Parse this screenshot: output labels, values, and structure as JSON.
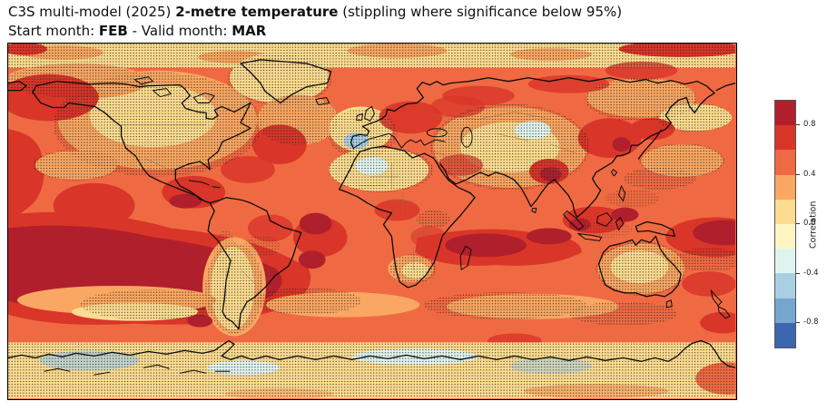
{
  "header": {
    "title_prefix": "C3S multi-model (2025) ",
    "title_emphasis": "2-metre temperature",
    "title_suffix": " (stippling where significance below 95%)",
    "start_label": "Start month: ",
    "start_month": "FEB",
    "valid_label": " - Valid month: ",
    "valid_month": "MAR"
  },
  "colorbar": {
    "label": "Correlation",
    "ticks": [
      "0.8",
      "0.4",
      "0.0",
      "-0.4",
      "-0.8"
    ],
    "segment_colors": [
      "#b01f2c",
      "#d93529",
      "#ef6a42",
      "#f9a762",
      "#fcdc8f",
      "#fdf5c2",
      "#e1f3ee",
      "#a9cfe4",
      "#74a6d0",
      "#3c66af"
    ]
  },
  "chart_data": {
    "type": "heatmap",
    "subtype": "filled-contour global correlation map with stippling",
    "title": "C3S multi-model (2025) 2-metre temperature (stippling where significance below 95%)",
    "subtitle": "Start month: FEB - Valid month: MAR",
    "variable": "2-metre temperature",
    "model": "C3S multi-model (2025)",
    "start_month": "FEB",
    "valid_month": "MAR",
    "projection": "equirectangular world map, lon -180..180, lat -90..90",
    "colorbar_label": "Correlation",
    "colorbar_ticks": [
      0.8,
      0.4,
      0.0,
      -0.4,
      -0.8
    ],
    "value_range": [
      -1.0,
      1.0
    ],
    "contour_step": 0.2,
    "stippling_meaning": "stippled where significance below 95%",
    "legend_position": "vertical colorbar at right",
    "palette": {
      "c10": "#b01f2c",
      "c08": "#d93529",
      "c06": "#ef6a42",
      "c04": "#f9a762",
      "c02": "#fcdc8f",
      "c00": "#fdf5c2",
      "n02": "#e1f3ee",
      "n04": "#a9cfe4",
      "n06": "#74a6d0",
      "n08": "#3c66af",
      "coast": "#0b0b0b",
      "border": "#8a7258",
      "stipple": "#1b1b1b"
    },
    "region_readings": [
      {
        "region": "Tropical central/eastern Pacific",
        "correlation": "0.8 to 1.0",
        "stippled": false
      },
      {
        "region": "Western Indian Ocean band",
        "correlation": "0.8 to 1.0",
        "stippled": false
      },
      {
        "region": "Most tropical/subtropical oceans",
        "correlation": "0.4 to 0.8",
        "stippled": false
      },
      {
        "region": "Caribbean and equatorial Atlantic",
        "correlation": "0.6 to 1.0",
        "stippled": false
      },
      {
        "region": "North America interior",
        "correlation": "0.2 to 0.4",
        "stippled": true
      },
      {
        "region": "Arctic band",
        "correlation": "0.0 to 0.4",
        "stippled": true
      },
      {
        "region": "Greenland and Canadian Arctic",
        "correlation": "0.2 to 0.4",
        "stippled": true
      },
      {
        "region": "Iberian Peninsula",
        "correlation": "-0.6 to -0.2",
        "stippled": true
      },
      {
        "region": "Sahara interior spot",
        "correlation": "-0.4 to 0.0",
        "stippled": true
      },
      {
        "region": "Central Asia",
        "correlation": "0.0 to 0.4",
        "stippled": true
      },
      {
        "region": "East Asia / Korea / Japan region",
        "correlation": "0.6 to 1.0",
        "stippled": false
      },
      {
        "region": "Maritime Continent / SE Asia seas",
        "correlation": "0.6 to 1.0",
        "stippled": false
      },
      {
        "region": "Australia interior",
        "correlation": "0.0 to 0.4",
        "stippled": true
      },
      {
        "region": "Argentina / southern South America",
        "correlation": "0.0 to 0.2",
        "stippled": true
      },
      {
        "region": "Southern Ocean ribbons",
        "correlation": "0.2 to 0.6",
        "stippled": true
      },
      {
        "region": "Antarctica coastal band",
        "correlation": "-0.4 to 0.2",
        "stippled": true
      }
    ]
  }
}
